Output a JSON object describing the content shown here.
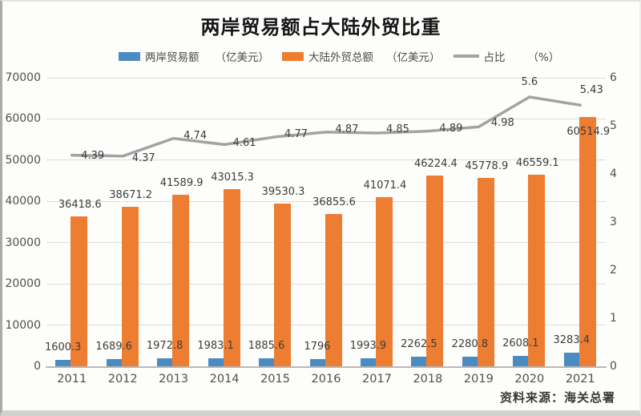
{
  "title": "两岸贸易额占大陆外贸比重",
  "source": "资料来源：海关总署",
  "legend": {
    "series1_label": "两岸贸易额",
    "series1_unit": "（亿美元）",
    "series2_label": "大陆外贸总额",
    "series2_unit": "（亿美元）",
    "series3_label": "占比",
    "series3_unit": "（%）"
  },
  "colors": {
    "bar_blue": "#4A8BC2",
    "bar_orange": "#ED7D31",
    "line_gray": "#A3A3A3"
  },
  "chart_data": {
    "type": "combo bar+line",
    "title": "两岸贸易额占大陆外贸比重",
    "categories": [
      "2011",
      "2012",
      "2013",
      "2014",
      "2015",
      "2016",
      "2017",
      "2018",
      "2019",
      "2020",
      "2021"
    ],
    "series": [
      {
        "name": "两岸贸易额",
        "type": "bar",
        "axis": "left",
        "unit": "亿美元",
        "color": "#4A8BC2",
        "values": [
          1600.3,
          1689.6,
          1972.8,
          1983.1,
          1885.6,
          1796,
          1993.9,
          2262.5,
          2280.8,
          2608.1,
          3283.4
        ]
      },
      {
        "name": "大陆外贸总额",
        "type": "bar",
        "axis": "left",
        "unit": "亿美元",
        "color": "#ED7D31",
        "values": [
          36418.6,
          38671.2,
          41589.9,
          43015.3,
          39530.3,
          36855.6,
          41071.4,
          46224.4,
          45778.9,
          46559.1,
          60514.9
        ]
      },
      {
        "name": "占比",
        "type": "line",
        "axis": "right",
        "unit": "%",
        "color": "#A3A3A3",
        "values": [
          4.39,
          4.37,
          4.74,
          4.61,
          4.77,
          4.87,
          4.85,
          4.89,
          4.98,
          5.6,
          5.43
        ]
      }
    ],
    "left_axis": {
      "min": 0,
      "max": 70000,
      "tick_step": 10000,
      "ticks": [
        0,
        10000,
        20000,
        30000,
        40000,
        50000,
        60000,
        70000
      ]
    },
    "right_axis": {
      "min": 0,
      "max": 6,
      "tick_step": 1,
      "ticks": [
        0,
        1,
        2,
        3,
        4,
        5,
        6
      ]
    },
    "grid": true,
    "data_labels": true,
    "legend_position": "top"
  }
}
